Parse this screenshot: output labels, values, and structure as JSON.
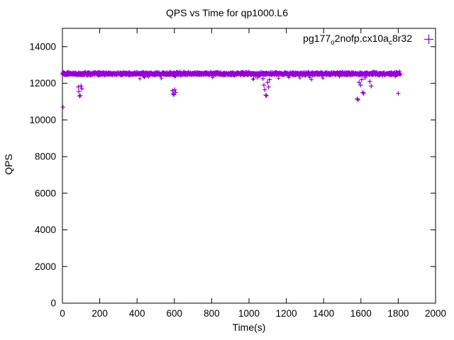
{
  "chart": {
    "title": "QPS vs Time for qp1000.L6",
    "xlabel": "Time(s)",
    "ylabel": "QPS"
  },
  "legend": {
    "series_label_parts": {
      "p1": "pg177",
      "sub1": "o",
      "p2": "2nofp.cx10a",
      "sub2": "c",
      "p3": "8r32"
    },
    "marker": "+"
  },
  "chart_data": {
    "type": "scatter",
    "title": "QPS vs Time for qp1000.L6",
    "xlabel": "Time(s)",
    "ylabel": "QPS",
    "xlim": [
      0,
      2000
    ],
    "ylim": [
      0,
      15000
    ],
    "x_ticks": [
      0,
      200,
      400,
      600,
      800,
      1000,
      1200,
      1400,
      1600,
      1800,
      2000
    ],
    "y_ticks": [
      0,
      2000,
      4000,
      6000,
      8000,
      10000,
      12000,
      14000
    ],
    "grid": false,
    "legend_position": "top-right-inside",
    "marker": "plus",
    "marker_color": "#9400d3",
    "series": [
      {
        "name": "pg177_o2nofp.cx10a_c8r32",
        "band": {
          "x_start": 0,
          "x_end": 1812,
          "points": 2600,
          "y_mean": 12520,
          "y_jitter": 90
        },
        "outliers": [
          [
            3,
            10700
          ],
          [
            85,
            11800
          ],
          [
            88,
            11550
          ],
          [
            92,
            11300
          ],
          [
            95,
            11330
          ],
          [
            100,
            11860
          ],
          [
            104,
            11700
          ],
          [
            590,
            11600
          ],
          [
            594,
            11420
          ],
          [
            598,
            11380
          ],
          [
            602,
            11650
          ],
          [
            607,
            11500
          ],
          [
            1075,
            12250
          ],
          [
            1080,
            11900
          ],
          [
            1085,
            11650
          ],
          [
            1090,
            11350
          ],
          [
            1094,
            11320
          ],
          [
            1100,
            12050
          ],
          [
            1105,
            11800
          ],
          [
            1110,
            12200
          ],
          [
            1580,
            11150
          ],
          [
            1585,
            11100
          ],
          [
            1590,
            12050
          ],
          [
            1598,
            11900
          ],
          [
            1604,
            12200
          ],
          [
            1610,
            11500
          ],
          [
            1615,
            11450
          ],
          [
            1622,
            12300
          ],
          [
            1648,
            12100
          ],
          [
            1655,
            11850
          ],
          [
            1800,
            11450
          ]
        ]
      }
    ]
  }
}
